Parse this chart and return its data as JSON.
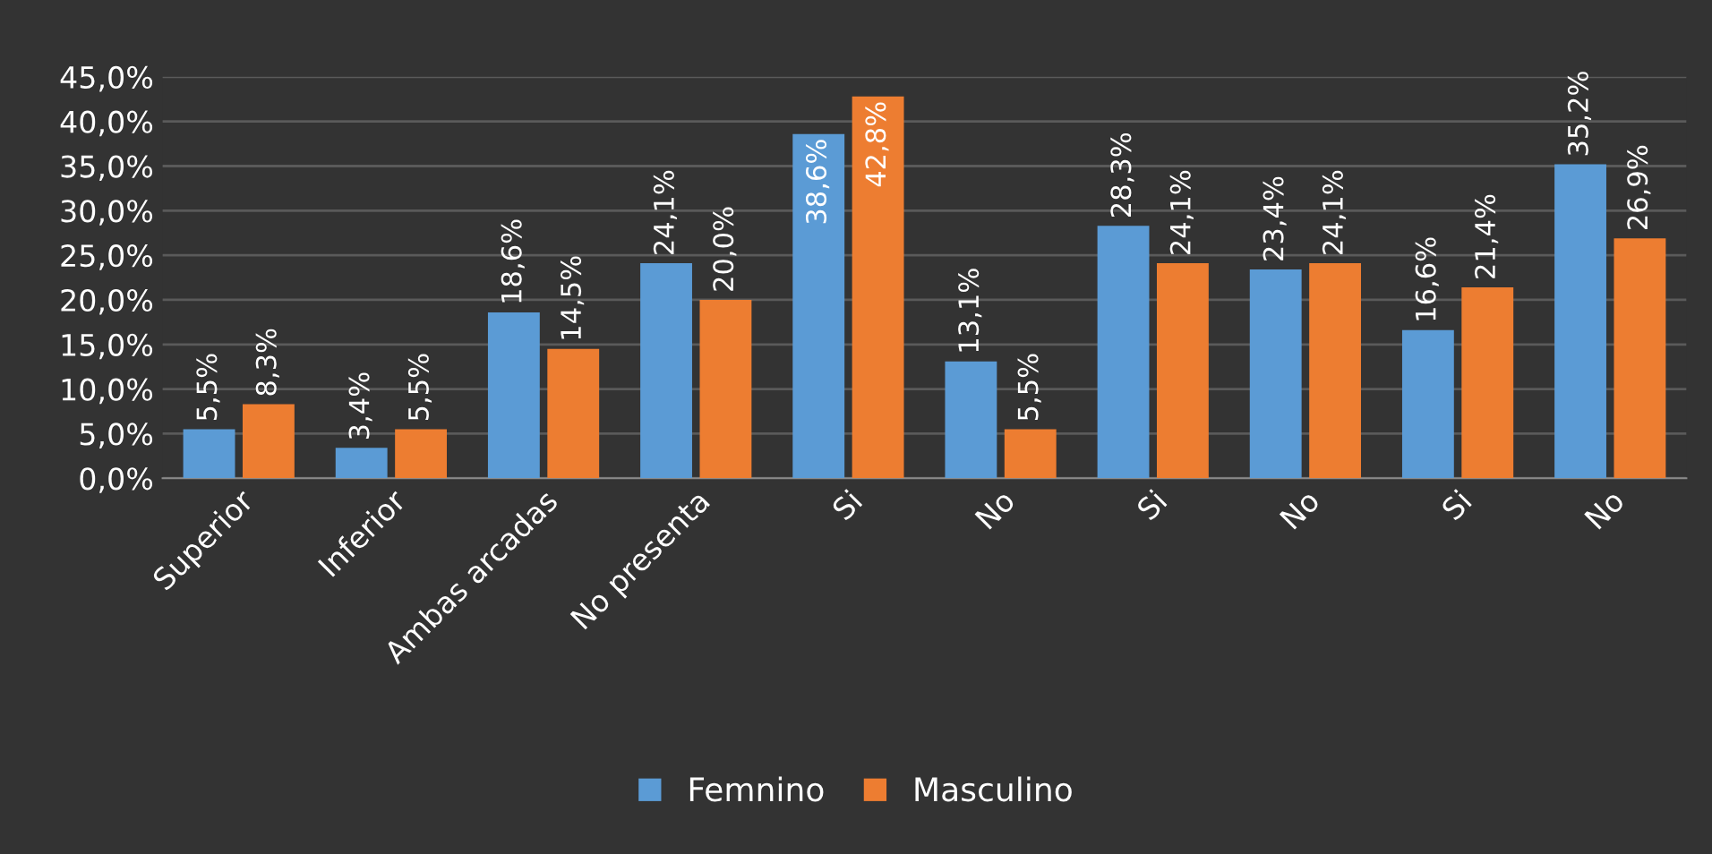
{
  "chart_data": {
    "type": "bar",
    "categories": [
      "Superior",
      "Inferior",
      "Ambas arcadas",
      "No presenta",
      "Si",
      "No",
      "Si",
      "No",
      "Si",
      "No"
    ],
    "series": [
      {
        "name": "Femnino",
        "color": "#5b9bd5",
        "values": [
          5.5,
          3.4,
          18.6,
          24.1,
          38.6,
          13.1,
          28.3,
          23.4,
          16.6,
          35.2
        ],
        "value_labels": [
          "5,5%",
          "3,4%",
          "18,6%",
          "24,1%",
          "38,6%",
          "13,1%",
          "28,3%",
          "23,4%",
          "16,6%",
          "35,2%"
        ]
      },
      {
        "name": "Masculino",
        "color": "#ed7d31",
        "values": [
          8.3,
          5.5,
          14.5,
          20.0,
          42.8,
          5.5,
          24.1,
          24.1,
          21.4,
          26.9
        ],
        "value_labels": [
          "8,3%",
          "5,5%",
          "14,5%",
          "20,0%",
          "42,8%",
          "5,5%",
          "24,1%",
          "24,1%",
          "21,4%",
          "26,9%"
        ]
      }
    ],
    "ylim": [
      0,
      45
    ],
    "yticks": [
      {
        "value": 0,
        "label": "0,0%"
      },
      {
        "value": 5,
        "label": "5,0%"
      },
      {
        "value": 10,
        "label": "10,0%"
      },
      {
        "value": 15,
        "label": "15,0%"
      },
      {
        "value": 20,
        "label": "20,0%"
      },
      {
        "value": 25,
        "label": "25,0%"
      },
      {
        "value": 30,
        "label": "30,0%"
      },
      {
        "value": 35,
        "label": "35,0%"
      },
      {
        "value": 40,
        "label": "40,0%"
      },
      {
        "value": 45,
        "label": "45,0%"
      }
    ],
    "grid": "y",
    "legend": "bottom"
  }
}
